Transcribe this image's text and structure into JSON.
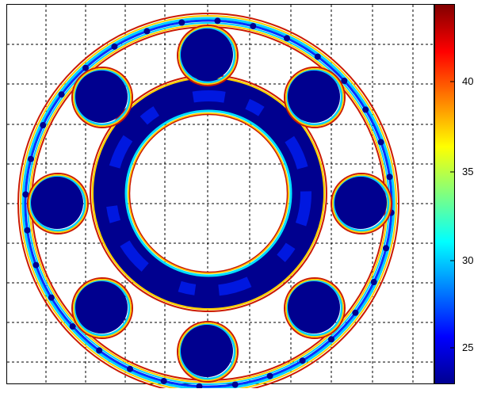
{
  "chart_data": {
    "type": "heatmap",
    "colormap": "jet",
    "grid": true,
    "grid_style": "dashed",
    "colorbar": {
      "position": "right",
      "range": [
        22,
        45
      ],
      "tick_labels": [
        "25",
        "30",
        "35",
        "40"
      ]
    },
    "colors": {
      "low": "#00008f",
      "high": "#800000",
      "background": "#ffffff",
      "grid": "#000000"
    }
  }
}
